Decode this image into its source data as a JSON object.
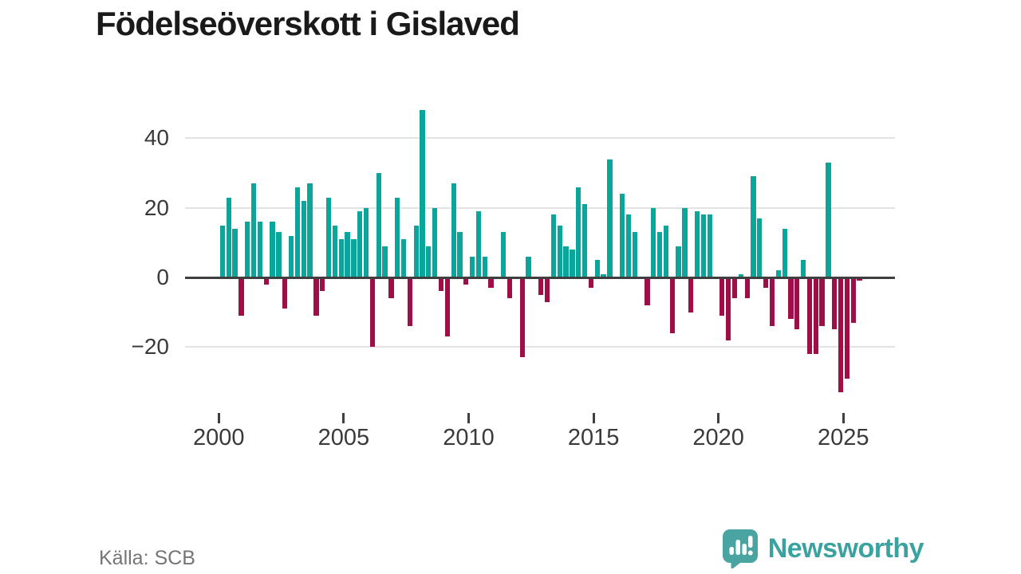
{
  "title": "Födelseöverskott i Gislaved",
  "source": "Källa: SCB",
  "logo": {
    "text": "Newsworthy",
    "color": "#3aa3a0"
  },
  "colors": {
    "positive": "#0ba59c",
    "negative": "#a00e48",
    "axis": "#3f3f3f",
    "grid": "#e3e3e3",
    "tick_label": "#3a3a3a",
    "source_text": "#757575"
  },
  "chart_data": {
    "type": "bar",
    "title": "Födelseöverskott i Gislaved",
    "x_unit": "quarter",
    "x_range": "2000 Q1 – 2025 Q3",
    "grid": true,
    "y_ticks": [
      40,
      20,
      0,
      -20
    ],
    "ylim": [
      -35,
      50
    ],
    "x_tick_years": [
      2000,
      2005,
      2010,
      2015,
      2020,
      2025
    ],
    "series_by_year": [
      {
        "year": 2000,
        "values": [
          15,
          23,
          14,
          -11
        ]
      },
      {
        "year": 2001,
        "values": [
          16,
          27,
          16,
          -2
        ]
      },
      {
        "year": 2002,
        "values": [
          16,
          13,
          -9,
          12
        ]
      },
      {
        "year": 2003,
        "values": [
          26,
          22,
          27,
          -11
        ]
      },
      {
        "year": 2004,
        "values": [
          -4,
          23,
          15,
          11
        ]
      },
      {
        "year": 2005,
        "values": [
          13,
          11,
          19,
          20
        ]
      },
      {
        "year": 2006,
        "values": [
          -20,
          30,
          9,
          -6
        ]
      },
      {
        "year": 2007,
        "values": [
          23,
          11,
          -14,
          15
        ]
      },
      {
        "year": 2008,
        "values": [
          48,
          9,
          20,
          -4
        ]
      },
      {
        "year": 2009,
        "values": [
          -17,
          27,
          13,
          -2
        ]
      },
      {
        "year": 2010,
        "values": [
          6,
          19,
          6,
          -3
        ]
      },
      {
        "year": 2011,
        "values": [
          0,
          13,
          -6,
          0
        ]
      },
      {
        "year": 2012,
        "values": [
          -23,
          6,
          0,
          -5
        ]
      },
      {
        "year": 2013,
        "values": [
          -7,
          18,
          15,
          9
        ]
      },
      {
        "year": 2014,
        "values": [
          8,
          26,
          21,
          -3
        ]
      },
      {
        "year": 2015,
        "values": [
          5,
          1,
          34,
          0
        ]
      },
      {
        "year": 2016,
        "values": [
          24,
          18,
          13,
          0
        ]
      },
      {
        "year": 2017,
        "values": [
          -8,
          20,
          13,
          15
        ]
      },
      {
        "year": 2018,
        "values": [
          -16,
          9,
          20,
          -10
        ]
      },
      {
        "year": 2019,
        "values": [
          19,
          18,
          18,
          0
        ]
      },
      {
        "year": 2020,
        "values": [
          -11,
          -18,
          -6,
          1
        ]
      },
      {
        "year": 2021,
        "values": [
          -6,
          29,
          17,
          -3
        ]
      },
      {
        "year": 2022,
        "values": [
          -14,
          2,
          14,
          -12
        ]
      },
      {
        "year": 2023,
        "values": [
          -15,
          5,
          -22,
          -22
        ]
      },
      {
        "year": 2024,
        "values": [
          -14,
          33,
          -15,
          -33
        ]
      },
      {
        "year": 2025,
        "values": [
          -29,
          -13,
          -1
        ]
      }
    ]
  }
}
